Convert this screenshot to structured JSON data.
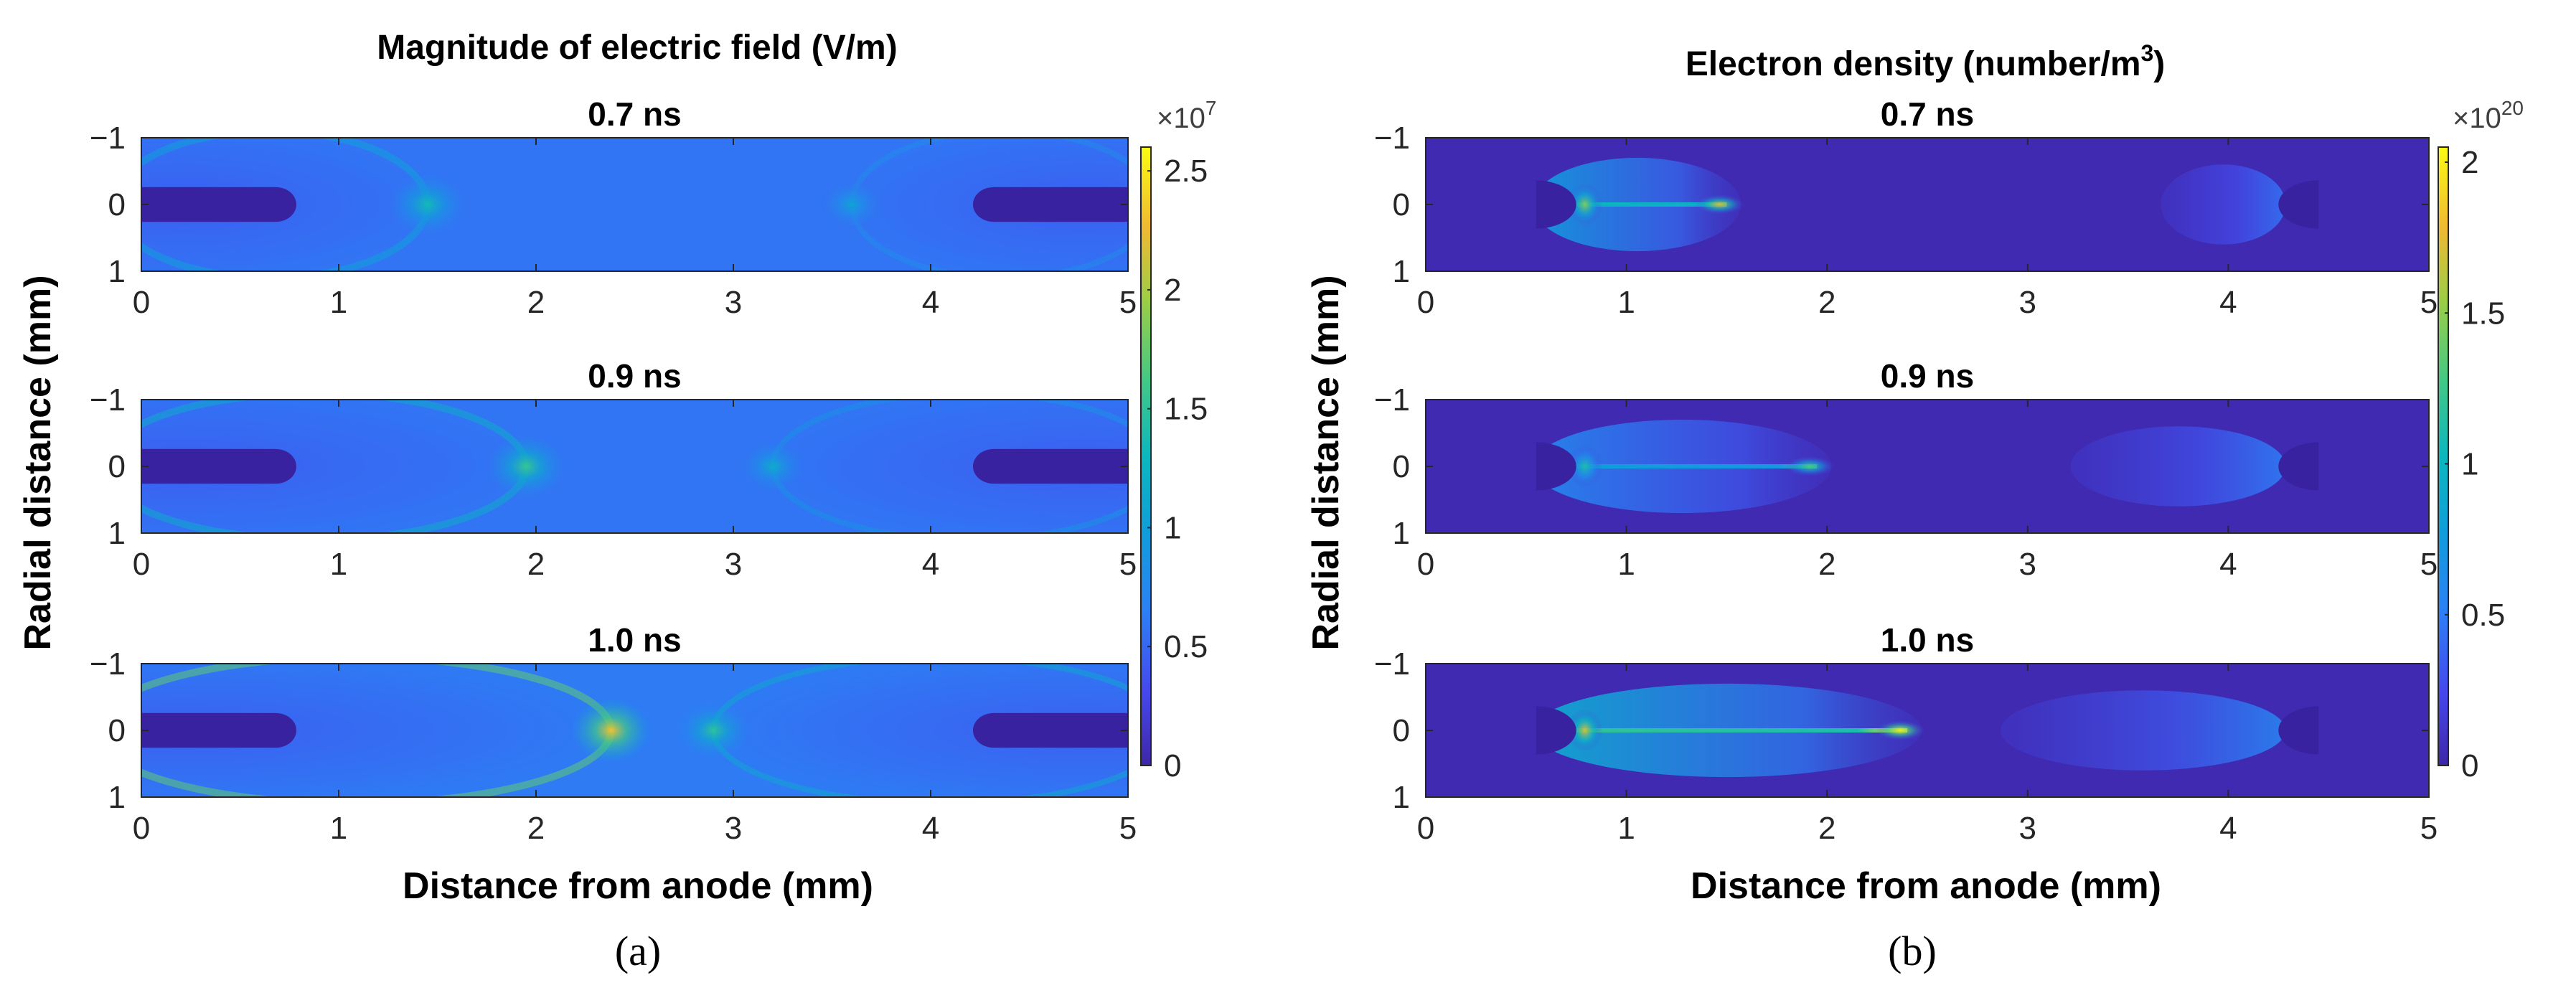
{
  "chart_data": [
    {
      "type": "heatmap",
      "title": "Magnitude of electric field (V/m)",
      "xlabel": "Distance from anode (mm)",
      "ylabel": "Radial distance (mm)",
      "panel_label": "(a)",
      "xlim": [
        0,
        5
      ],
      "ylim": [
        -1,
        1
      ],
      "x_ticks": [
        "0",
        "1",
        "2",
        "3",
        "4",
        "5"
      ],
      "y_ticks": [
        "−1",
        "0",
        "1"
      ],
      "colorbar": {
        "multiplier": "×10",
        "exponent": "7",
        "range": [
          0,
          2.6
        ],
        "ticks": [
          {
            "value": 0,
            "label": "0"
          },
          {
            "value": 0.5,
            "label": "0.5"
          },
          {
            "value": 1,
            "label": "1"
          },
          {
            "value": 1.5,
            "label": "1.5"
          },
          {
            "value": 2,
            "label": "2"
          },
          {
            "value": 2.5,
            "label": "2.5"
          }
        ]
      },
      "panels": [
        {
          "title": "0.7 ns",
          "time_ns": 0.7,
          "background": 0.58,
          "anode_front_mm": 1.45,
          "anode_peak": 1.35,
          "cathode_front_mm": 3.6,
          "cathode_peak": 1.05
        },
        {
          "title": "0.9 ns",
          "time_ns": 0.9,
          "background": 0.58,
          "anode_front_mm": 1.95,
          "anode_peak": 1.55,
          "cathode_front_mm": 3.2,
          "cathode_peak": 1.15
        },
        {
          "title": "1.0 ns",
          "time_ns": 1.0,
          "background": 0.62,
          "anode_front_mm": 2.38,
          "anode_peak": 2.3,
          "cathode_front_mm": 2.9,
          "cathode_peak": 1.5
        }
      ]
    },
    {
      "type": "heatmap",
      "title": "Electron density (number/m",
      "title_sup": "3",
      "title_end": ")",
      "xlabel": "Distance from anode (mm)",
      "ylabel": "Radial distance (mm)",
      "panel_label": "(b)",
      "xlim": [
        0,
        5
      ],
      "ylim": [
        -1,
        1
      ],
      "x_ticks": [
        "0",
        "1",
        "2",
        "3",
        "4",
        "5"
      ],
      "y_ticks": [
        "−1",
        "0",
        "1"
      ],
      "colorbar": {
        "multiplier": "×10",
        "exponent": "20",
        "range": [
          0,
          2.05
        ],
        "ticks": [
          {
            "value": 0,
            "label": "0"
          },
          {
            "value": 0.5,
            "label": "0.5"
          },
          {
            "value": 1,
            "label": "1"
          },
          {
            "value": 1.5,
            "label": "1.5"
          },
          {
            "value": 2,
            "label": "2"
          }
        ]
      },
      "panels": [
        {
          "title": "0.7 ns",
          "time_ns": 0.7,
          "anode_front_mm": 1.5,
          "anode_peak": 1.7,
          "cathode_front_mm": 3.7,
          "cathode_peak": 0.45
        },
        {
          "title": "0.9 ns",
          "time_ns": 0.9,
          "anode_front_mm": 1.95,
          "anode_peak": 1.3,
          "cathode_front_mm": 3.25,
          "cathode_peak": 0.5
        },
        {
          "title": "1.0 ns",
          "time_ns": 1.0,
          "anode_front_mm": 2.4,
          "anode_peak": 2.0,
          "cathode_front_mm": 2.9,
          "cathode_peak": 0.55
        }
      ]
    }
  ]
}
